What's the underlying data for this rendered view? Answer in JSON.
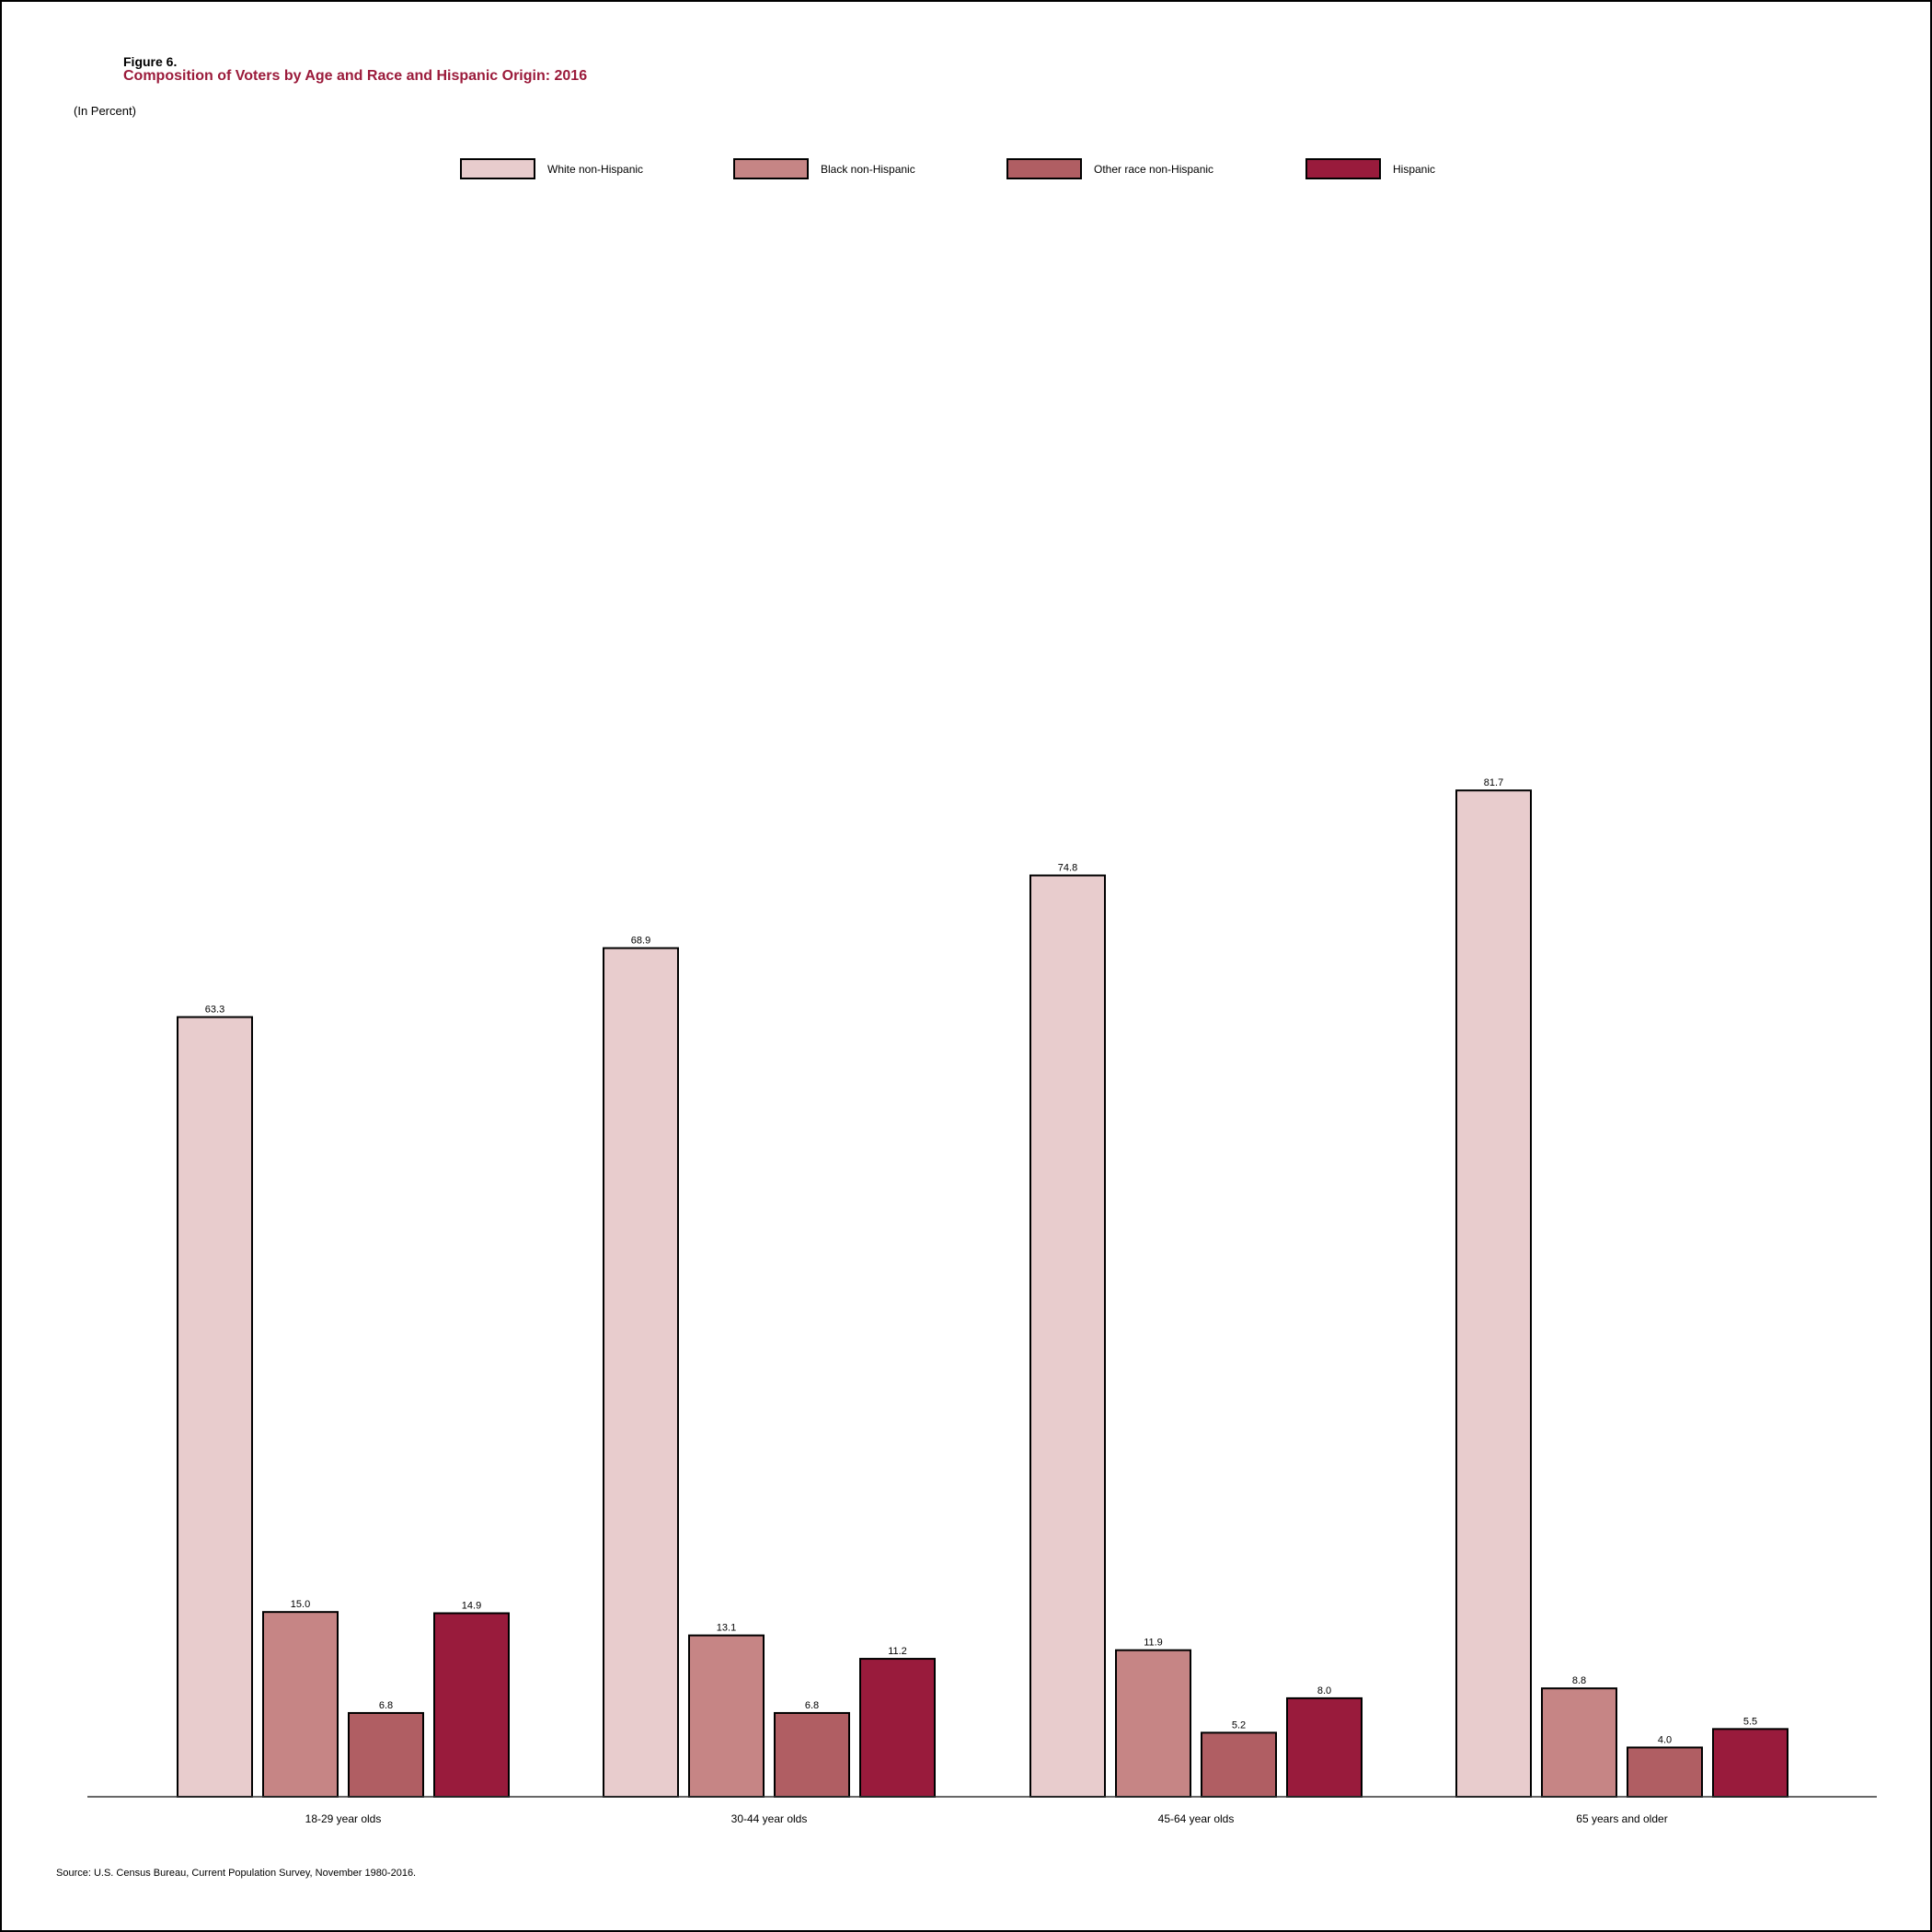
{
  "figure_label": "Figure 6.",
  "title": "Composition of Voters by Age and Race and Hispanic Origin: 2016",
  "unit_note": "(In Percent)",
  "source": "Source: U.S. Census Bureau, Current Population Survey, November 1980-2016.",
  "colors": {
    "title": "#9b1b3b",
    "axis": "#333333"
  },
  "chart_data": {
    "type": "bar",
    "title": "Composition of Voters by Age and Race and Hispanic Origin: 2016",
    "xlabel": "",
    "ylabel": "",
    "ylim": [
      0,
      100
    ],
    "grid": false,
    "legend_position": "top",
    "categories": [
      "18-29 year olds",
      "30-44 year olds",
      "45-64 year olds",
      "65 years and older"
    ],
    "series": [
      {
        "name": "White non-Hispanic",
        "color": "#e8cccd",
        "values": [
          63.3,
          68.9,
          74.8,
          81.7
        ],
        "labels": [
          "63.3",
          "68.9",
          "74.8",
          "81.7"
        ]
      },
      {
        "name": "Black non-Hispanic",
        "color": "#c68585",
        "values": [
          15.0,
          13.1,
          11.9,
          8.8
        ],
        "labels": [
          "15.0",
          "13.1",
          "11.9",
          "8.8"
        ]
      },
      {
        "name": "Other race non-Hispanic",
        "color": "#b05e63",
        "values": [
          6.8,
          6.8,
          5.2,
          4.0
        ],
        "labels": [
          "6.8",
          "6.8",
          "5.2",
          "4.0"
        ]
      },
      {
        "name": "Hispanic",
        "color": "#991b3c",
        "values": [
          14.9,
          11.2,
          8.0,
          5.5
        ],
        "labels": [
          "14.9",
          "11.2",
          "8.0",
          "5.5"
        ]
      }
    ]
  }
}
